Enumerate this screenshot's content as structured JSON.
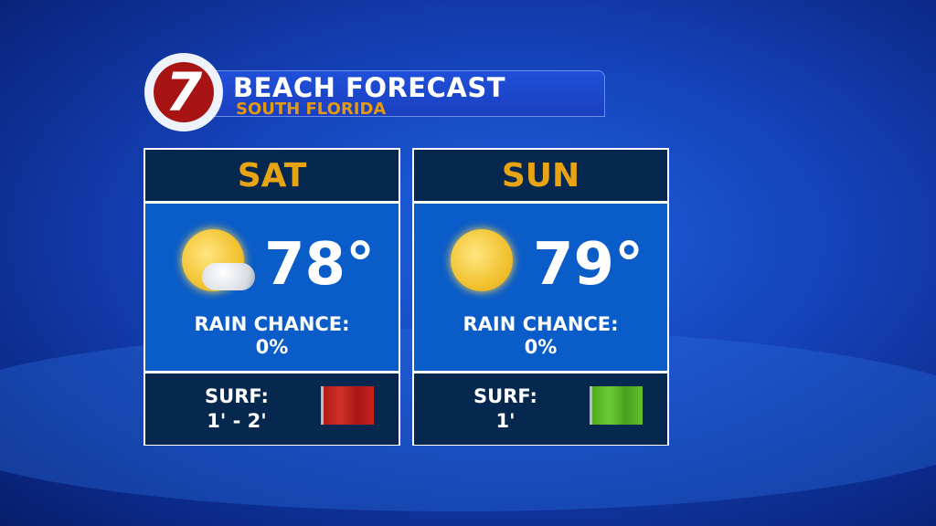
{
  "header": {
    "logo_text": "7",
    "title": "BEACH FORECAST",
    "subtitle": "SOUTH FLORIDA"
  },
  "days": [
    {
      "day": "SAT",
      "icon": "partly-cloudy-icon",
      "temp": "78°",
      "rain_label": "RAIN CHANCE:",
      "rain_value": "0%",
      "surf_label": "SURF:",
      "surf_value": "1' - 2'",
      "flag": "red-flag-icon",
      "flag_color": "#c0201e"
    },
    {
      "day": "SUN",
      "icon": "sunny-icon",
      "temp": "79°",
      "rain_label": "RAIN CHANCE:",
      "rain_value": "0%",
      "surf_label": "SURF:",
      "surf_value": "1'",
      "flag": "green-flag-icon",
      "flag_color": "#5bbb2a"
    }
  ]
}
